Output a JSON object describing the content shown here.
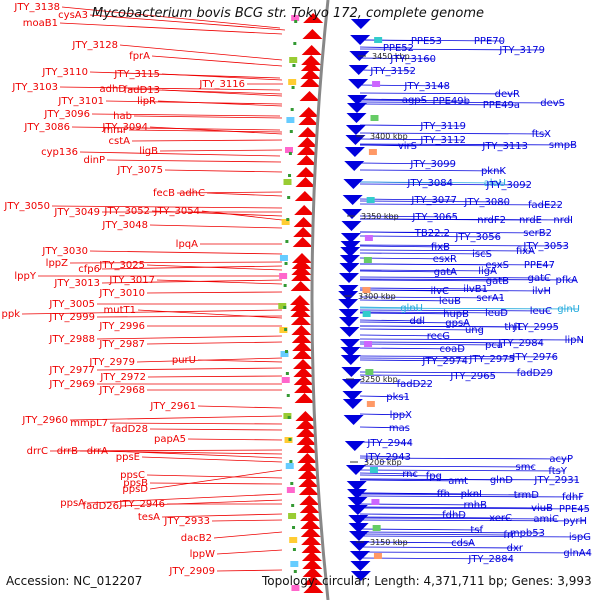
{
  "title": "Mycobacterium bovis BCG str. Tokyo 172, complete genome",
  "footer": {
    "accession": "Accession: NC_012207",
    "topology": "Topology: circular; Length: 4,371,711 bp; Genes: 3,993"
  },
  "colors": {
    "forward": "#ee0000",
    "reverse": "#0000dd",
    "rna": "#22aadd",
    "backbone": "#888888",
    "tick": "#339933"
  },
  "kbp_marks": [
    "3450 kbp",
    "3400 kbp",
    "3350 kbp",
    "3300 kbp",
    "3250 kbp",
    "3200 kbp",
    "3150 kbp"
  ],
  "left_labels": [
    "JTY_3138",
    "cysA3",
    "moaB1",
    "JTY_3128",
    "fprA",
    "JTY_3110",
    "JTY_3115",
    "JTY_3116",
    "JTY_3103",
    "adhD",
    "fadD13",
    "JTY_3101",
    "lipR",
    "JTY_3096",
    "hab",
    "JTY_3086",
    "mmr",
    "JTY_3094",
    "cstA",
    "ligB",
    "cyp136",
    "dinP",
    "JTY_3075",
    "fecB",
    "adhC",
    "JTY_3050",
    "JTY_3049",
    "JTY_3052",
    "JTY_3054",
    "JTY_3048",
    "lpqA",
    "JTY_3030",
    "lppZ",
    "cfp6",
    "JTY_3025",
    "lppY",
    "JTY_3013",
    "JTY_3017",
    "JTY_3010",
    "JTY_3005",
    "ppk",
    "JTY_2999",
    "mutT1",
    "JTY_2996",
    "JTY_2988",
    "JTY_2987",
    "JTY_2979",
    "purU",
    "JTY_2977",
    "JTY_2972",
    "JTY_2969",
    "JTY_2968",
    "JTY_2961",
    "JTY_2960",
    "mmpL7",
    "fadD28",
    "papA5",
    "drrC",
    "drrB",
    "drrA",
    "ppsE",
    "ppsD",
    "ppsC",
    "ppsB",
    "ppsA",
    "fadD26",
    "JTY_2946",
    "tesA",
    "JTY_2933",
    "dacB2",
    "lppW",
    "JTY_2909"
  ],
  "right_labels": [
    "PPE53",
    "PPE70",
    "PPE52",
    "JTY_3179",
    "JTY_3160",
    "JTY_3152",
    "JTY_3148",
    "devR",
    "agpS",
    "PPE49b",
    "PPE49a",
    "devS",
    "JTY_3119",
    "ftsX",
    "JTY_3112",
    "virS",
    "JTY_3113",
    "smpB",
    "JTY_3099",
    "pknK",
    "JTY_3084",
    "alaU",
    "JTY_3092",
    "JTY_3077",
    "JTY_3080",
    "fadE22",
    "JTY_3065",
    "nrdF2",
    "nrdE",
    "nrdI",
    "TB22.2",
    "JTY_3056",
    "serB2",
    "fixB",
    "JTY_3053",
    "esxR",
    "iscS",
    "fixA",
    "esxS",
    "PPE47",
    "gatA",
    "ligA",
    "gatB",
    "gatC",
    "pfkA",
    "ilvC",
    "ilvB1",
    "ilvH",
    "leuB",
    "serA1",
    "glnU",
    "hupB",
    "leuD",
    "leuC",
    "glnU",
    "ddl",
    "gpsA",
    "ung",
    "thiL",
    "JTY_2995",
    "recG",
    "JTY_2984",
    "lipN",
    "coaD",
    "pca",
    "JTY_2974",
    "JTY_2975",
    "JTY_2976",
    "fadD22",
    "JTY_2965",
    "fadD29",
    "pks1",
    "lppX",
    "mas",
    "JTY_2944",
    "JTY_2943",
    "acyP",
    "rnc",
    "smc",
    "ftsY",
    "fpg",
    "amt",
    "glnD",
    "JTY_2931",
    "ffh",
    "pknI",
    "trmD",
    "fdhF",
    "rnhB",
    "viuB",
    "PPE45",
    "fdhD",
    "xerC",
    "amiC",
    "pyrH",
    "tsf",
    "frr",
    "mpb53",
    "ispG",
    "cdsA",
    "dxr",
    "glnA4",
    "JTY_2884"
  ]
}
